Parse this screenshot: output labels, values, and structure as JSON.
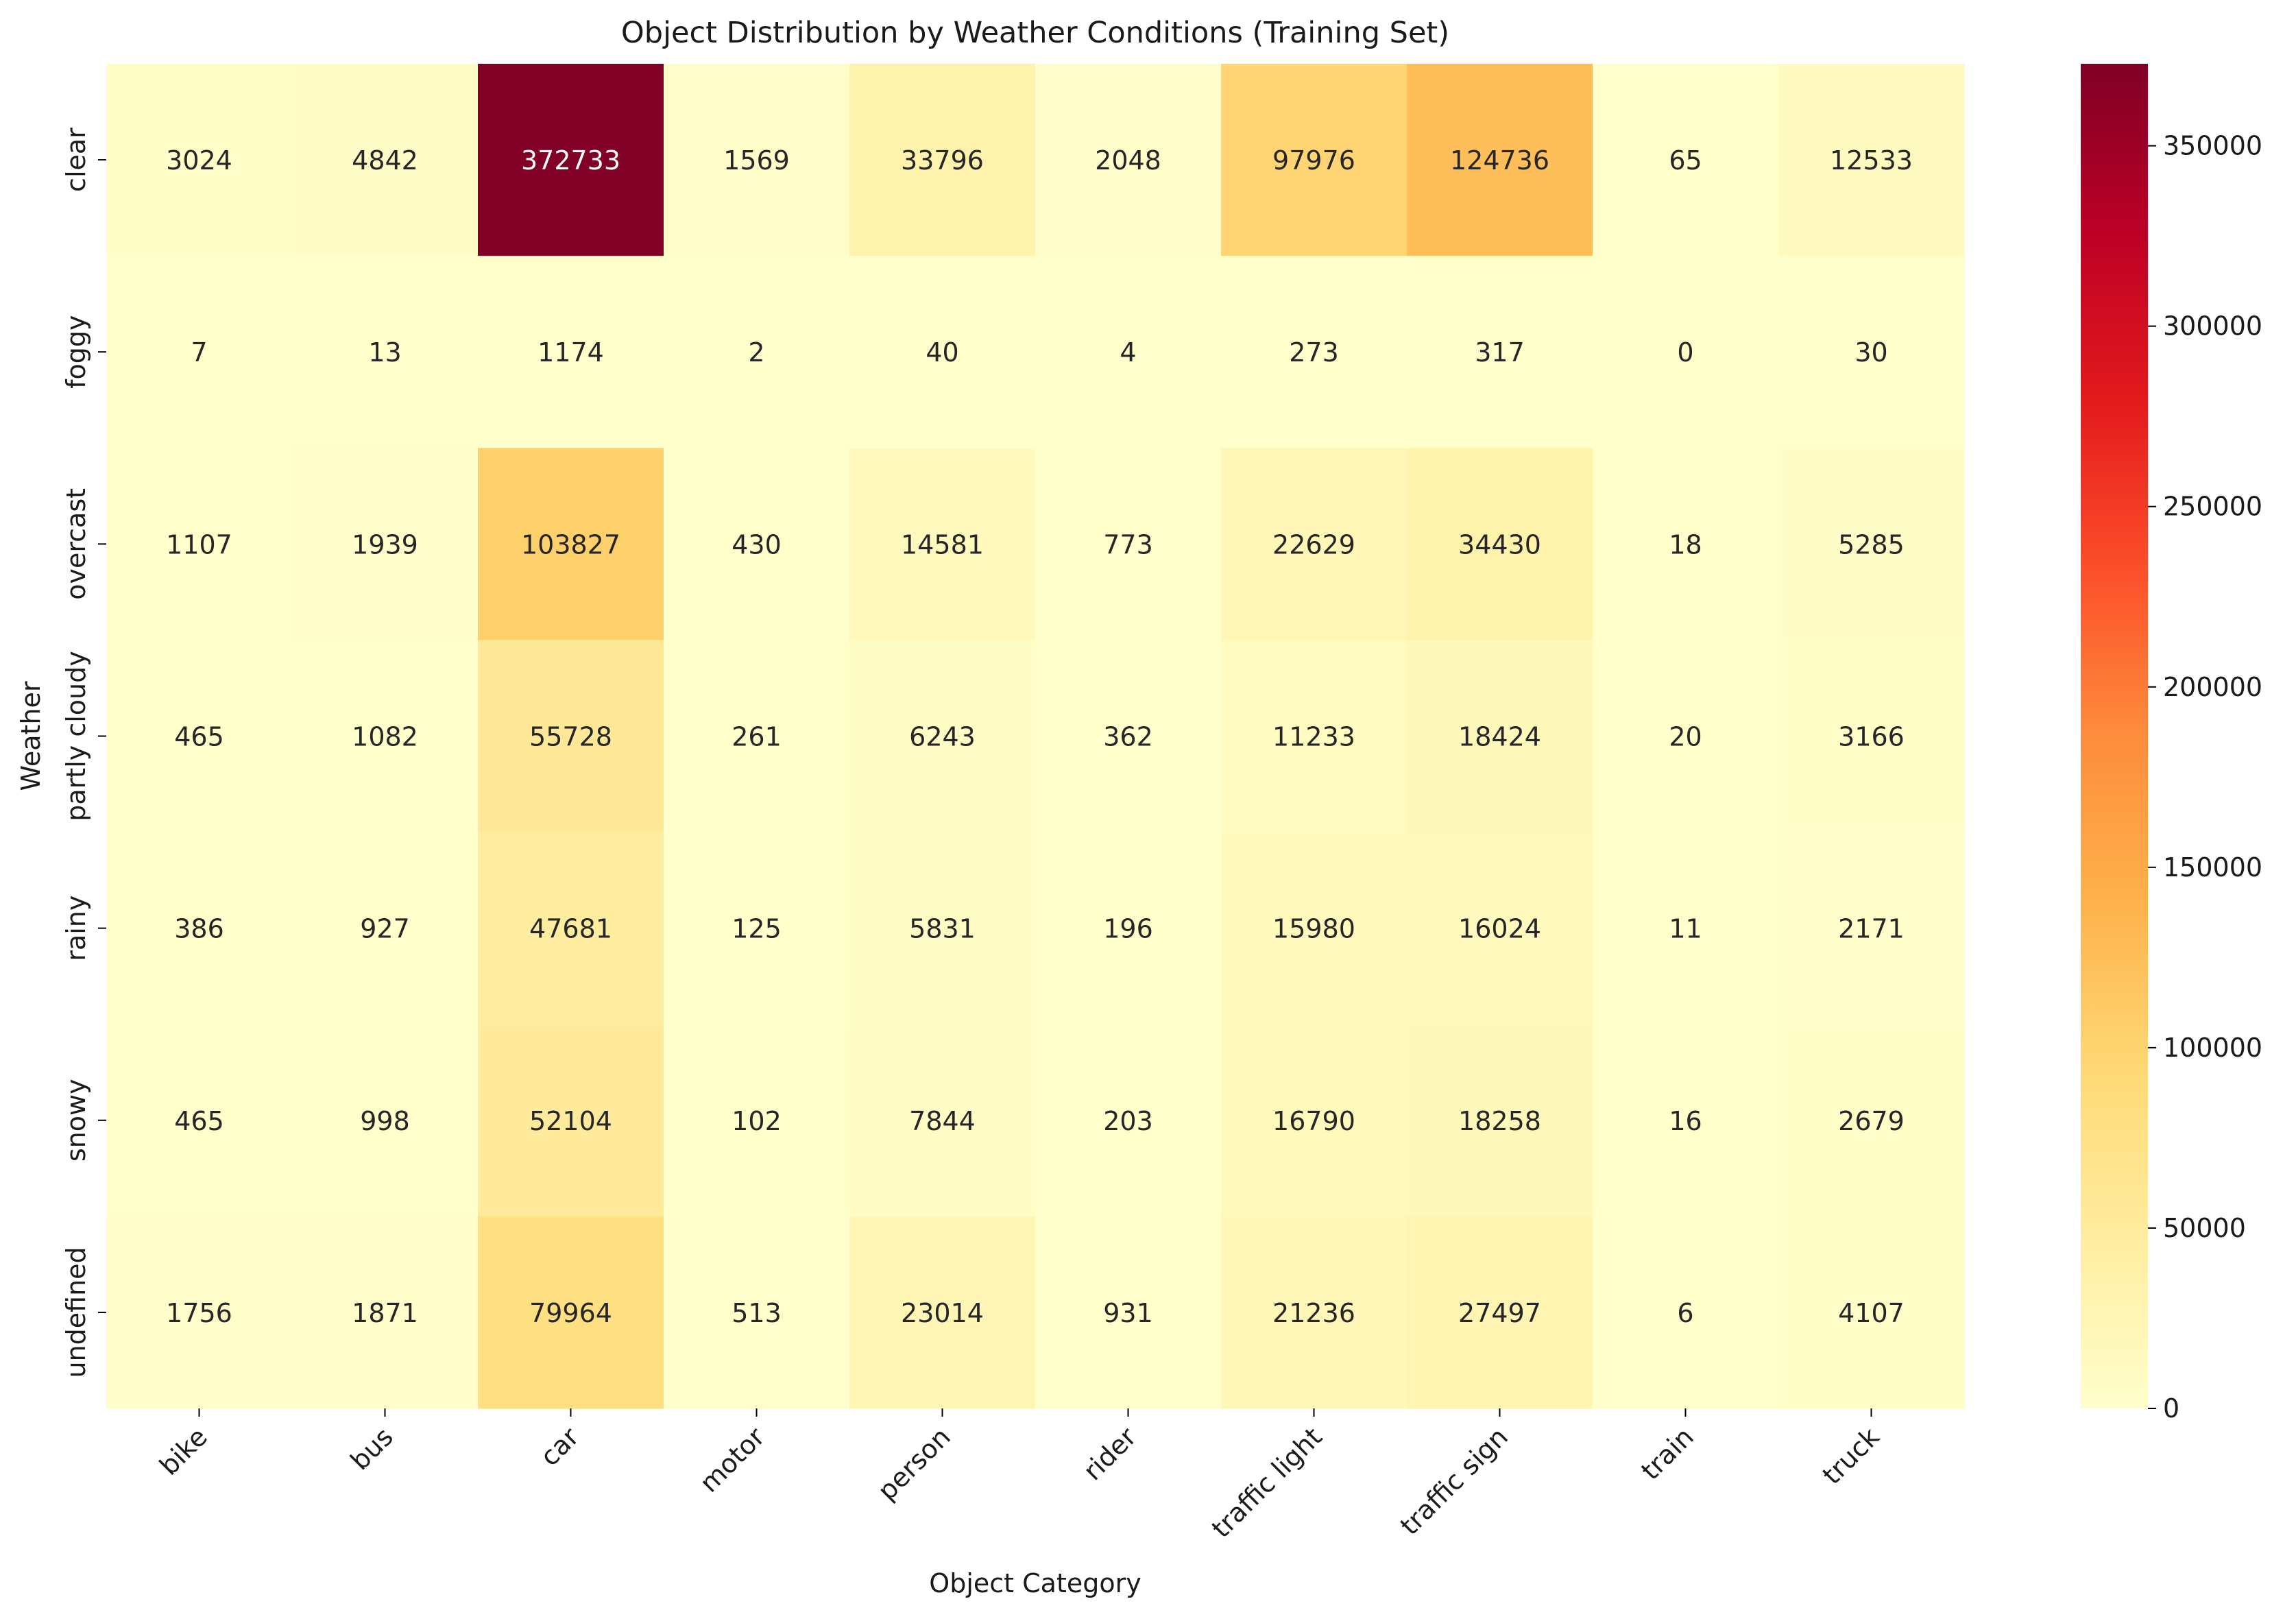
{
  "chart_data": {
    "type": "heatmap",
    "title": "Object Distribution by Weather Conditions (Training Set)",
    "xlabel": "Object Category",
    "ylabel": "Weather",
    "x_categories": [
      "bike",
      "bus",
      "car",
      "motor",
      "person",
      "rider",
      "traffic light",
      "traffic sign",
      "train",
      "truck"
    ],
    "y_categories": [
      "clear",
      "foggy",
      "overcast",
      "partly cloudy",
      "rainy",
      "snowy",
      "undefined"
    ],
    "values": [
      [
        3024,
        4842,
        372733,
        1569,
        33796,
        2048,
        97976,
        124736,
        65,
        12533
      ],
      [
        7,
        13,
        1174,
        2,
        40,
        4,
        273,
        317,
        0,
        30
      ],
      [
        1107,
        1939,
        103827,
        430,
        14581,
        773,
        22629,
        34430,
        18,
        5285
      ],
      [
        465,
        1082,
        55728,
        261,
        6243,
        362,
        11233,
        18424,
        20,
        3166
      ],
      [
        386,
        927,
        47681,
        125,
        5831,
        196,
        15980,
        16024,
        11,
        2171
      ],
      [
        465,
        998,
        52104,
        102,
        7844,
        203,
        16790,
        18258,
        16,
        2679
      ],
      [
        1756,
        1871,
        79964,
        513,
        23014,
        931,
        21236,
        27497,
        6,
        4107
      ]
    ],
    "colormap": "YlOrRd",
    "colorbar": {
      "vmin": 0,
      "vmax": 372733,
      "ticks": [
        0,
        50000,
        100000,
        150000,
        200000,
        250000,
        300000,
        350000
      ]
    },
    "annotations": true
  }
}
